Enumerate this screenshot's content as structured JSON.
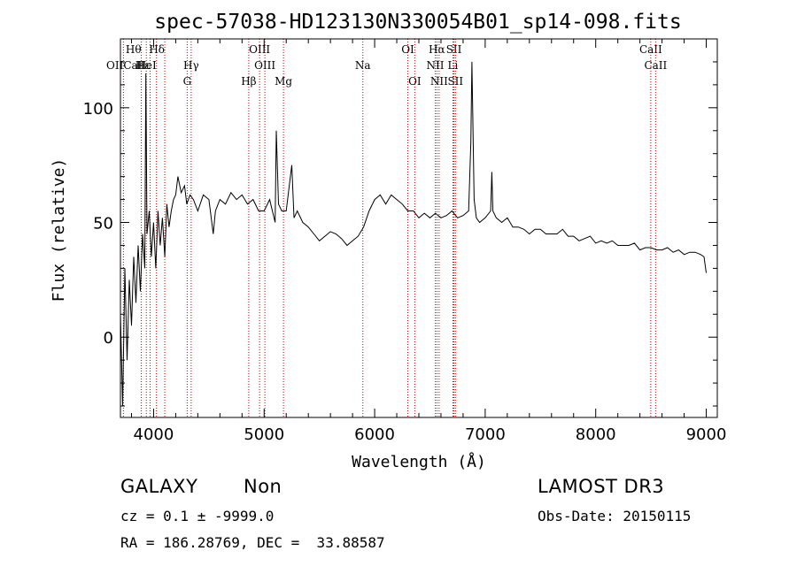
{
  "chart_data": {
    "type": "line",
    "title": "spec-57038-HD123130N330054B01_sp14-098.fits",
    "xlabel": "Wavelength (Å)",
    "ylabel": "Flux (relative)",
    "xlim": [
      3700,
      9100
    ],
    "ylim": [
      -35,
      130
    ],
    "xticks": [
      4000,
      5000,
      6000,
      7000,
      8000,
      9000
    ],
    "yticks": [
      0,
      50,
      100
    ],
    "grid": false,
    "series": [
      {
        "values_x": [
          3700,
          3720,
          3740,
          3760,
          3780,
          3800,
          3820,
          3840,
          3860,
          3880,
          3900,
          3920,
          3930,
          3940,
          3960,
          3980,
          4000,
          4020,
          4040,
          4060,
          4080,
          4101,
          4120,
          4140,
          4160,
          4180,
          4200,
          4220,
          4250,
          4280,
          4300,
          4330,
          4360,
          4400,
          4450,
          4500,
          4540,
          4560,
          4600,
          4650,
          4700,
          4750,
          4800,
          4850,
          4900,
          4950,
          5000,
          5050,
          5100,
          5110,
          5130,
          5160,
          5200,
          5250,
          5270,
          5300,
          5350,
          5400,
          5450,
          5500,
          5550,
          5600,
          5650,
          5700,
          5750,
          5800,
          5850,
          5900,
          5950,
          6000,
          6050,
          6100,
          6150,
          6200,
          6250,
          6300,
          6350,
          6400,
          6450,
          6500,
          6550,
          6600,
          6650,
          6700,
          6750,
          6800,
          6850,
          6870,
          6880,
          6900,
          6920,
          6950,
          7000,
          7050,
          7060,
          7070,
          7100,
          7150,
          7200,
          7250,
          7300,
          7350,
          7400,
          7450,
          7500,
          7550,
          7600,
          7650,
          7700,
          7750,
          7800,
          7850,
          7900,
          7950,
          8000,
          8050,
          8100,
          8150,
          8200,
          8250,
          8300,
          8350,
          8400,
          8450,
          8500,
          8550,
          8600,
          8650,
          8700,
          8750,
          8800,
          8850,
          8900,
          8950,
          8980,
          9000
        ],
        "values_y": [
          10,
          -30,
          30,
          -10,
          25,
          5,
          35,
          15,
          40,
          20,
          45,
          30,
          115,
          45,
          55,
          35,
          50,
          30,
          55,
          40,
          52,
          35,
          58,
          48,
          55,
          60,
          62,
          70,
          63,
          66,
          58,
          62,
          60,
          55,
          62,
          60,
          45,
          55,
          60,
          58,
          63,
          60,
          62,
          58,
          60,
          55,
          55,
          60,
          50,
          90,
          58,
          55,
          55,
          75,
          52,
          55,
          50,
          48,
          45,
          42,
          44,
          46,
          45,
          43,
          40,
          42,
          44,
          48,
          55,
          60,
          62,
          58,
          62,
          60,
          58,
          55,
          55,
          52,
          54,
          52,
          54,
          52,
          53,
          55,
          52,
          53,
          55,
          85,
          120,
          60,
          52,
          50,
          52,
          55,
          72,
          55,
          52,
          50,
          52,
          48,
          48,
          47,
          45,
          47,
          47,
          45,
          45,
          45,
          47,
          44,
          44,
          42,
          43,
          44,
          41,
          42,
          41,
          42,
          40,
          40,
          40,
          41,
          38,
          39,
          39,
          38,
          38,
          39,
          37,
          38,
          36,
          37,
          37,
          36,
          35,
          28
        ]
      }
    ],
    "lines": [
      {
        "x": 3934,
        "label": "CaII",
        "row": 1,
        "pos": "left"
      },
      {
        "x": 3968,
        "label": "Hε",
        "row": 1,
        "pos": "left"
      },
      {
        "x": 3889,
        "label": "Hθ",
        "row": 0,
        "pos": "left"
      },
      {
        "x": 3727,
        "label": "OII",
        "row": 1,
        "pos": "left"
      },
      {
        "x": 4026,
        "label": "HeI",
        "row": 1,
        "pos": "left"
      },
      {
        "x": 4101,
        "label": "Hδ",
        "row": 0,
        "pos": "left"
      },
      {
        "x": 4340,
        "label": "Hγ",
        "row": 1,
        "pos": "right"
      },
      {
        "x": 4304,
        "label": "G",
        "row": 2,
        "pos": "right"
      },
      {
        "x": 4861,
        "label": "Hβ",
        "row": 2,
        "pos": "right"
      },
      {
        "x": 4959,
        "label": "OIII",
        "row": 0,
        "pos": "right"
      },
      {
        "x": 5007,
        "label": "OIII",
        "row": 1,
        "pos": "right"
      },
      {
        "x": 5175,
        "label": "Mg",
        "row": 2,
        "pos": "right"
      },
      {
        "x": 5893,
        "label": "Na",
        "row": 1,
        "pos": "right"
      },
      {
        "x": 6300,
        "label": "OI",
        "row": 0,
        "pos": "right"
      },
      {
        "x": 6363,
        "label": "OI",
        "row": 2,
        "pos": "right"
      },
      {
        "x": 6548,
        "label": "NII",
        "row": 1,
        "pos": "right"
      },
      {
        "x": 6563,
        "label": "Hα",
        "row": 0,
        "pos": "right"
      },
      {
        "x": 6583,
        "label": "NII",
        "row": 2,
        "pos": "right"
      },
      {
        "x": 6717,
        "label": "SII",
        "row": 0,
        "pos": "right"
      },
      {
        "x": 6731,
        "label": "SII",
        "row": 2,
        "pos": "right"
      },
      {
        "x": 6708,
        "label": "Li",
        "row": 1,
        "pos": "right"
      },
      {
        "x": 8498,
        "label": "CaII",
        "row": 0,
        "pos": "right"
      },
      {
        "x": 8542,
        "label": "CaII",
        "row": 1,
        "pos": "right"
      }
    ]
  },
  "info": {
    "class": "GALAXY",
    "subclass": "Non",
    "survey": "LAMOST DR3",
    "cz": "cz = 0.1 ± -9999.0",
    "obs_date": "Obs-Date: 20150115",
    "coords": "RA = 186.28769, DEC =  33.88587"
  }
}
